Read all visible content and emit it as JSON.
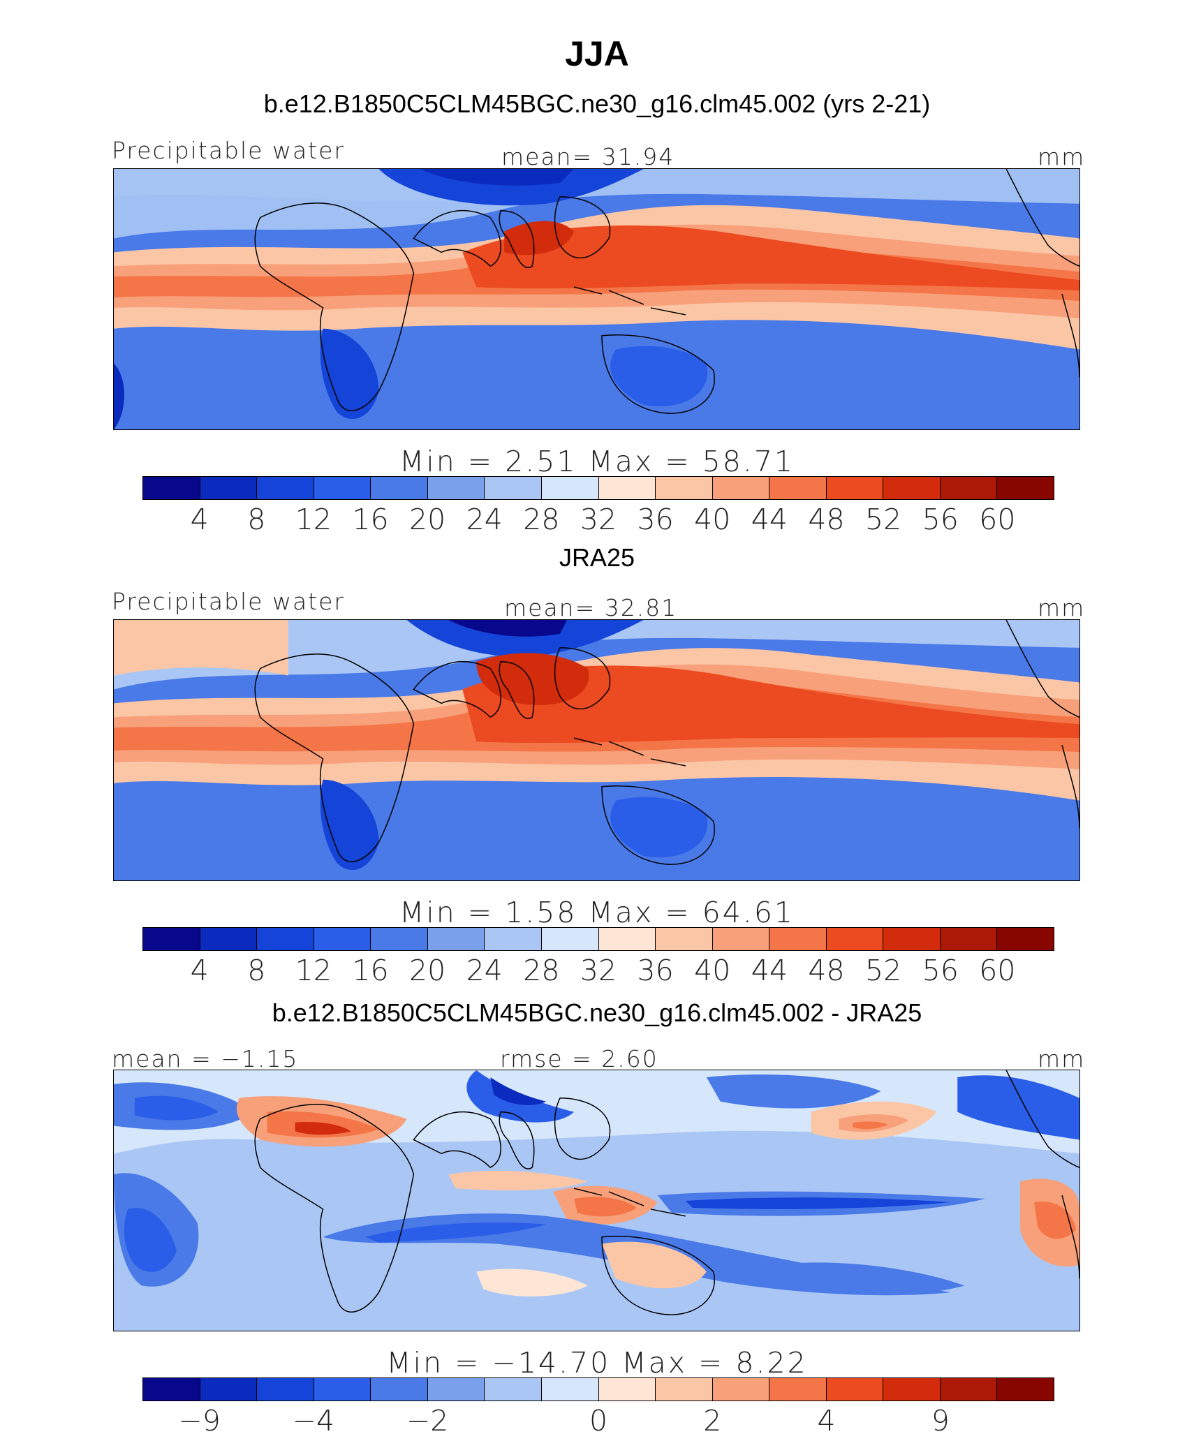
{
  "title": "JJA",
  "colors": [
    "#08088c",
    "#0a2bbd",
    "#1444d8",
    "#2a5ee8",
    "#4a7ae8",
    "#7aa0ec",
    "#aac6f4",
    "#d6e6fb",
    "#fde6d6",
    "#fbc6a6",
    "#f8a07a",
    "#f47648",
    "#ec4a20",
    "#d22c0c",
    "#ac1a06",
    "#880600"
  ],
  "panels": [
    {
      "title": "b.e12.B1850C5CLM45BGC.ne30_g16.clm45.002 (yrs 2-21)",
      "left_label": "Precipitable water",
      "center_label": "mean=   31.94",
      "right_label": "mm",
      "minmax": "Min  =     2.51  Max  =    58.71",
      "cbar_ticks": [
        "4",
        "8",
        "12",
        "16",
        "20",
        "24",
        "28",
        "32",
        "36",
        "40",
        "44",
        "48",
        "52",
        "56",
        "60"
      ]
    },
    {
      "title": "JRA25",
      "left_label": "Precipitable water",
      "center_label": "mean=   32.81",
      "right_label": "mm",
      "minmax": "Min  =     1.58  Max  =    64.61",
      "cbar_ticks": [
        "4",
        "8",
        "12",
        "16",
        "20",
        "24",
        "28",
        "32",
        "36",
        "40",
        "44",
        "48",
        "52",
        "56",
        "60"
      ]
    },
    {
      "title": "b.e12.B1850C5CLM45BGC.ne30_g16.clm45.002 - JRA25",
      "left_label": "mean =   −1.15",
      "center_label": "rmse =     2.60",
      "right_label": "mm",
      "minmax": "Min  = −14.70  Max  =    8.22",
      "cbar_ticks": [
        "−9",
        "−4",
        "−2",
        "0",
        "2",
        "4",
        "9"
      ]
    }
  ]
}
